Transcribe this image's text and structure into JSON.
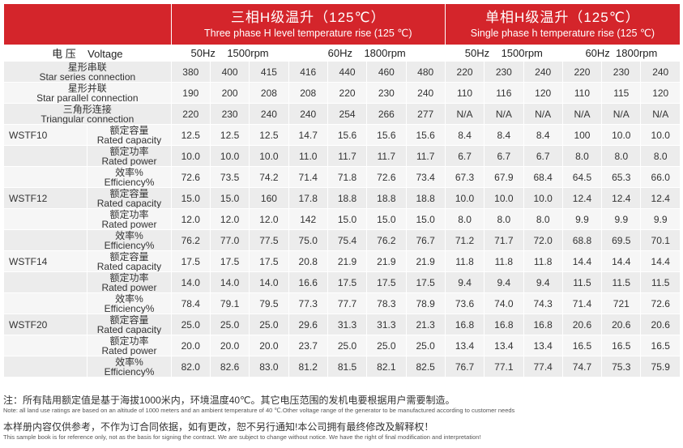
{
  "header": {
    "three_phase_zh": "三相H级温升（125℃）",
    "three_phase_en": "Three phase H level temperature rise (125 ℃)",
    "single_phase_zh": "单相H级温升（125℃）",
    "single_phase_en": "Single phase h temperature rise (125 ℃)"
  },
  "voltage_row": {
    "label": "电 压    Voltage",
    "tp50": "50Hz    1500rpm",
    "tp60": "60Hz    1800rpm",
    "sp50": "50Hz    1500rpm",
    "sp60": "60Hz  1800rpm"
  },
  "connections": [
    {
      "zh": "星形串联",
      "en": "Star series connection",
      "values": [
        "380",
        "400",
        "415",
        "416",
        "440",
        "460",
        "480",
        "220",
        "230",
        "240",
        "220",
        "230",
        "240"
      ]
    },
    {
      "zh": "星形并联",
      "en": "Star parallel connection",
      "values": [
        "190",
        "200",
        "208",
        "208",
        "220",
        "230",
        "240",
        "110",
        "116",
        "120",
        "110",
        "115",
        "120"
      ]
    },
    {
      "zh": "三角形连接",
      "en": "Triangular connection",
      "values": [
        "220",
        "230",
        "240",
        "240",
        "254",
        "266",
        "277",
        "N/A",
        "N/A",
        "N/A",
        "N/A",
        "N/A",
        "N/A"
      ]
    }
  ],
  "models": [
    {
      "name": "WSTF10",
      "rows": [
        {
          "zh": "额定容量",
          "en": "Rated capacity",
          "values": [
            "12.5",
            "12.5",
            "12.5",
            "14.7",
            "15.6",
            "15.6",
            "15.6",
            "8.4",
            "8.4",
            "8.4",
            "100",
            "10.0",
            "10.0"
          ]
        },
        {
          "zh": "额定功率",
          "en": "Rated power",
          "values": [
            "10.0",
            "10.0",
            "10.0",
            "11.0",
            "11.7",
            "11.7",
            "11.7",
            "6.7",
            "6.7",
            "6.7",
            "8.0",
            "8.0",
            "8.0"
          ]
        },
        {
          "zh": "效率%",
          "en": "Efficiency%",
          "values": [
            "72.6",
            "73.5",
            "74.2",
            "71.4",
            "71.8",
            "72.6",
            "73.4",
            "67.3",
            "67.9",
            "68.4",
            "64.5",
            "65.3",
            "66.0"
          ]
        }
      ]
    },
    {
      "name": "WSTF12",
      "rows": [
        {
          "zh": "额定容量",
          "en": "Rated capacity",
          "values": [
            "15.0",
            "15.0",
            "160",
            "17.8",
            "18.8",
            "18.8",
            "18.8",
            "10.0",
            "10.0",
            "10.0",
            "12.4",
            "12.4",
            "12.4"
          ]
        },
        {
          "zh": "额定功率",
          "en": "Rated power",
          "values": [
            "12.0",
            "12.0",
            "12.0",
            "142",
            "15.0",
            "15.0",
            "15.0",
            "8.0",
            "8.0",
            "8.0",
            "9.9",
            "9.9",
            "9.9"
          ]
        },
        {
          "zh": "效率%",
          "en": "Efficiency%",
          "values": [
            "76.2",
            "77.0",
            "77.5",
            "75.0",
            "75.4",
            "76.2",
            "76.7",
            "71.2",
            "71.7",
            "72.0",
            "68.8",
            "69.5",
            "70.1"
          ]
        }
      ]
    },
    {
      "name": "WSTF14",
      "rows": [
        {
          "zh": "额定容量",
          "en": "Rated capacity",
          "values": [
            "17.5",
            "17.5",
            "17.5",
            "20.8",
            "21.9",
            "21.9",
            "21.9",
            "11.8",
            "11.8",
            "11.8",
            "14.4",
            "14.4",
            "14.4"
          ]
        },
        {
          "zh": "额定功率",
          "en": "Rated power",
          "values": [
            "14.0",
            "14.0",
            "14.0",
            "16.6",
            "17.5",
            "17.5",
            "17.5",
            "9.4",
            "9.4",
            "9.4",
            "11.5",
            "11.5",
            "11.5"
          ]
        },
        {
          "zh": "效率%",
          "en": "Efficiency%",
          "values": [
            "78.4",
            "79.1",
            "79.5",
            "77.3",
            "77.7",
            "78.3",
            "78.9",
            "73.6",
            "74.0",
            "74.3",
            "71.4",
            "721",
            "72.6"
          ]
        }
      ]
    },
    {
      "name": "WSTF20",
      "rows": [
        {
          "zh": "额定容量",
          "en": "Rated capacity",
          "values": [
            "25.0",
            "25.0",
            "25.0",
            "29.6",
            "31.3",
            "31.3",
            "21.3",
            "16.8",
            "16.8",
            "16.8",
            "20.6",
            "20.6",
            "20.6"
          ]
        },
        {
          "zh": "额定功率",
          "en": "Rated power",
          "values": [
            "20.0",
            "20.0",
            "20.0",
            "23.7",
            "25.0",
            "25.0",
            "25.0",
            "13.4",
            "13.4",
            "13.4",
            "16.5",
            "16.5",
            "16.5"
          ]
        },
        {
          "zh": "效率%",
          "en": "Efficiency%",
          "values": [
            "82.0",
            "82.6",
            "83.0",
            "81.2",
            "81.5",
            "82.1",
            "82.5",
            "76.7",
            "77.1",
            "77.4",
            "74.7",
            "75.3",
            "75.9"
          ]
        }
      ]
    }
  ],
  "notes": {
    "note1_zh": "注：所有陆用额定值是基于海拔1000米内，环境温度40℃。其它电压范围的发机电要根据用户需要制造。",
    "note1_en": "Note: all land use ratings are based on an altitude of 1000 meters and an ambient temperature of 40 ℃.Other voltage range of the generator to be manufactured according to customer needs",
    "note2_zh": "本样册内容仅供参考，不作为订合同依据，如有更改，恕不另行通知!本公司拥有最终修改及解释权！",
    "note2_en": "This sample book is for reference only, not as the basis for signing the contract. We are subject to change without notice. We have the right of final modification and interpretation!"
  },
  "colors": {
    "header_bg": "#d4252b",
    "row_gray": "#ececec",
    "row_light": "#f6f6f6"
  }
}
